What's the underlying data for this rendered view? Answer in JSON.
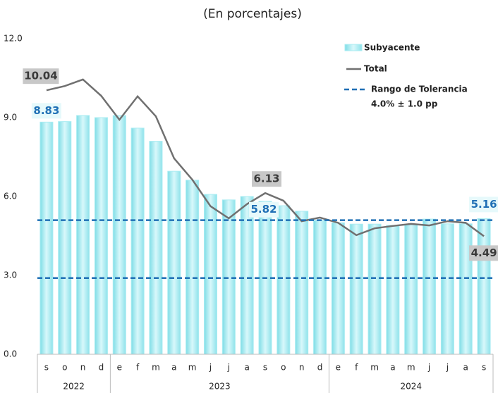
{
  "chart_data": {
    "type": "bar-line",
    "subtitle": "(En porcentajes)",
    "categories": [
      "s",
      "o",
      "n",
      "d",
      "e",
      "f",
      "m",
      "a",
      "m",
      "j",
      "j",
      "a",
      "s",
      "o",
      "n",
      "d",
      "e",
      "f",
      "m",
      "a",
      "m",
      "j",
      "j",
      "a",
      "s"
    ],
    "years": [
      {
        "label": "2022",
        "count": 4
      },
      {
        "label": "2023",
        "count": 12
      },
      {
        "label": "2024",
        "count": 9
      }
    ],
    "ylim": [
      0,
      12
    ],
    "yticks": [
      {
        "value": 0,
        "label": "0.0"
      },
      {
        "value": 3,
        "label": "3.0"
      },
      {
        "value": 6,
        "label": "6.0"
      },
      {
        "value": 9,
        "label": "9.0"
      },
      {
        "value": 12,
        "label": "12.0"
      }
    ],
    "series": [
      {
        "name": "Subyacente",
        "kind": "bar",
        "color": "#a9ecf2",
        "values": [
          8.83,
          8.85,
          9.08,
          9.0,
          9.08,
          8.6,
          8.1,
          6.96,
          6.62,
          6.08,
          5.87,
          6.0,
          5.82,
          5.65,
          5.44,
          5.09,
          5.0,
          4.95,
          4.95,
          4.9,
          4.92,
          5.14,
          4.96,
          4.96,
          5.16
        ],
        "value_labels": [
          "8.83",
          null,
          null,
          null,
          null,
          null,
          null,
          null,
          null,
          null,
          null,
          null,
          "5.82",
          null,
          null,
          null,
          null,
          null,
          null,
          null,
          null,
          null,
          null,
          null,
          "5.16"
        ]
      },
      {
        "name": "Total",
        "kind": "line",
        "color": "#707070",
        "values": [
          10.04,
          10.2,
          10.45,
          9.83,
          8.92,
          9.81,
          9.05,
          7.45,
          6.64,
          5.63,
          5.17,
          5.71,
          6.13,
          5.84,
          5.06,
          5.2,
          5.0,
          4.53,
          4.79,
          4.88,
          4.96,
          4.9,
          5.06,
          5.0,
          4.49
        ],
        "value_labels": [
          "10.04",
          null,
          null,
          null,
          null,
          null,
          null,
          null,
          null,
          null,
          null,
          null,
          "6.13",
          null,
          null,
          null,
          null,
          null,
          null,
          null,
          null,
          null,
          null,
          null,
          "4.49"
        ]
      }
    ],
    "tolerance": {
      "name": [
        "Rango de Tolerancia",
        "4.0% ± 1.0 pp"
      ],
      "color": "#1f6fb5",
      "values": [
        5.1,
        2.9
      ]
    }
  }
}
